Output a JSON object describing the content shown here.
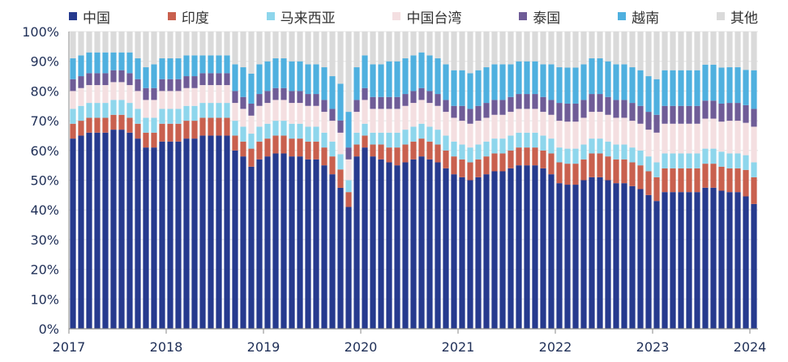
{
  "chart_data": {
    "type": "stacked-bar",
    "title": "",
    "xlabel": "",
    "ylabel": "",
    "ylim": [
      0,
      100
    ],
    "y_ticks": [
      "0%",
      "10%",
      "20%",
      "30%",
      "40%",
      "50%",
      "60%",
      "70%",
      "80%",
      "90%",
      "100%"
    ],
    "x_ticks": [
      {
        "label": "2017",
        "at": 0
      },
      {
        "label": "2018",
        "at": 12
      },
      {
        "label": "2019",
        "at": 24
      },
      {
        "label": "2020",
        "at": 36
      },
      {
        "label": "2021",
        "at": 48
      },
      {
        "label": "2022",
        "at": 60
      },
      {
        "label": "2023",
        "at": 72
      },
      {
        "label": "2024",
        "at": 84
      }
    ],
    "bars_per_year": 12,
    "bar_count": 85,
    "series": [
      {
        "name": "中国",
        "color": "#263a8e",
        "values": [
          64,
          65,
          66,
          66,
          66,
          67,
          67,
          66,
          64,
          61,
          61,
          63,
          63,
          63,
          64,
          64,
          65,
          65,
          65,
          65,
          60,
          58,
          54,
          57,
          58,
          59,
          59,
          58,
          58,
          57,
          57,
          55,
          52,
          46,
          41,
          58,
          61,
          58,
          57,
          56,
          55,
          56,
          57,
          58,
          57,
          56,
          54,
          52,
          51,
          50,
          51,
          52,
          53,
          53,
          54,
          55,
          55,
          55,
          54,
          52,
          49,
          48,
          48,
          50,
          51,
          51,
          50,
          49,
          49,
          48,
          47,
          45,
          43,
          46,
          46,
          46,
          46,
          46,
          47,
          47,
          46,
          46,
          46,
          45,
          42
        ]
      },
      {
        "name": "印度",
        "color": "#c9604e",
        "values": [
          5,
          5,
          5,
          5,
          5,
          5,
          5,
          5,
          5,
          5,
          5,
          6,
          6,
          6,
          6,
          6,
          6,
          6,
          6,
          6,
          5,
          5,
          6,
          6,
          6,
          6,
          6,
          6,
          6,
          6,
          6,
          6,
          6,
          6,
          5,
          4,
          4,
          4,
          5,
          5,
          6,
          6,
          6,
          6,
          6,
          6,
          6,
          6,
          6,
          6,
          6,
          6,
          6,
          6,
          6,
          6,
          6,
          6,
          6,
          7,
          7,
          7,
          7,
          7,
          8,
          8,
          8,
          8,
          8,
          8,
          8,
          8,
          8,
          8,
          8,
          8,
          8,
          8,
          8,
          8,
          8,
          8,
          8,
          9,
          9
        ]
      },
      {
        "name": "马来西亚",
        "color": "#8ed6ec",
        "values": [
          5,
          5,
          5,
          5,
          5,
          5,
          5,
          5,
          5,
          5,
          5,
          5,
          5,
          5,
          5,
          5,
          5,
          5,
          5,
          5,
          5,
          5,
          5,
          5,
          5,
          5,
          5,
          5,
          5,
          5,
          5,
          5,
          5,
          5,
          4,
          4,
          4,
          4,
          4,
          5,
          5,
          5,
          5,
          5,
          5,
          5,
          5,
          5,
          5,
          5,
          5,
          5,
          5,
          5,
          5,
          5,
          5,
          5,
          5,
          5,
          5,
          5,
          5,
          5,
          5,
          5,
          5,
          5,
          5,
          5,
          5,
          5,
          5,
          5,
          5,
          5,
          5,
          5,
          5,
          5,
          5,
          5,
          5,
          5,
          5
        ]
      },
      {
        "name": "中国台湾",
        "color": "#f4dfe1",
        "values": [
          6,
          6,
          6,
          6,
          6,
          6,
          6,
          6,
          6,
          6,
          6,
          6,
          6,
          6,
          6,
          6,
          6,
          6,
          6,
          6,
          6,
          6,
          6,
          7,
          7,
          7,
          7,
          7,
          7,
          7,
          7,
          7,
          7,
          7,
          7,
          7,
          8,
          8,
          8,
          8,
          8,
          8,
          8,
          8,
          8,
          8,
          8,
          8,
          8,
          8,
          8,
          8,
          8,
          8,
          8,
          8,
          8,
          8,
          8,
          8,
          9,
          9,
          9,
          9,
          9,
          9,
          9,
          9,
          9,
          9,
          9,
          9,
          10,
          10,
          10,
          10,
          10,
          10,
          10,
          10,
          10,
          11,
          11,
          11,
          12
        ]
      },
      {
        "name": "泰国",
        "color": "#6f5c97",
        "values": [
          4,
          4,
          4,
          4,
          4,
          4,
          4,
          4,
          4,
          4,
          4,
          4,
          4,
          4,
          4,
          4,
          4,
          4,
          4,
          4,
          4,
          4,
          4,
          4,
          4,
          4,
          4,
          4,
          4,
          4,
          4,
          4,
          4,
          4,
          4,
          4,
          4,
          4,
          4,
          4,
          4,
          4,
          4,
          4,
          4,
          4,
          4,
          4,
          5,
          5,
          5,
          5,
          5,
          5,
          5,
          5,
          5,
          5,
          5,
          5,
          6,
          6,
          6,
          6,
          6,
          6,
          6,
          6,
          6,
          6,
          6,
          6,
          6,
          6,
          6,
          6,
          6,
          6,
          6,
          6,
          6,
          6,
          6,
          6,
          6
        ]
      },
      {
        "name": "越南",
        "color": "#4fb0df",
        "values": [
          7,
          7,
          7,
          7,
          7,
          6,
          6,
          7,
          7,
          7,
          8,
          7,
          7,
          7,
          7,
          7,
          6,
          6,
          6,
          6,
          9,
          10,
          10,
          10,
          10,
          10,
          10,
          10,
          10,
          10,
          10,
          11,
          11,
          12,
          12,
          11,
          11,
          11,
          11,
          12,
          12,
          12,
          12,
          12,
          12,
          12,
          12,
          12,
          12,
          12,
          12,
          12,
          12,
          12,
          11,
          11,
          11,
          11,
          11,
          12,
          12,
          12,
          12,
          12,
          12,
          12,
          12,
          12,
          12,
          12,
          12,
          12,
          12,
          12,
          12,
          12,
          12,
          12,
          12,
          12,
          12,
          12,
          12,
          12,
          13
        ]
      },
      {
        "name": "其他",
        "color": "#dadada",
        "values": [
          9,
          8,
          7,
          7,
          7,
          7,
          7,
          7,
          9,
          12,
          11,
          9,
          9,
          9,
          8,
          8,
          8,
          8,
          8,
          8,
          11,
          12,
          14,
          11,
          10,
          9,
          9,
          10,
          10,
          11,
          11,
          12,
          15,
          17,
          27,
          12,
          8,
          11,
          11,
          10,
          10,
          9,
          8,
          7,
          8,
          9,
          11,
          13,
          13,
          14,
          13,
          12,
          11,
          11,
          11,
          10,
          10,
          10,
          11,
          11,
          12,
          12,
          12,
          11,
          9,
          9,
          10,
          11,
          11,
          12,
          13,
          15,
          16,
          13,
          13,
          13,
          13,
          13,
          11,
          11,
          12,
          12,
          12,
          13,
          13
        ]
      }
    ]
  }
}
